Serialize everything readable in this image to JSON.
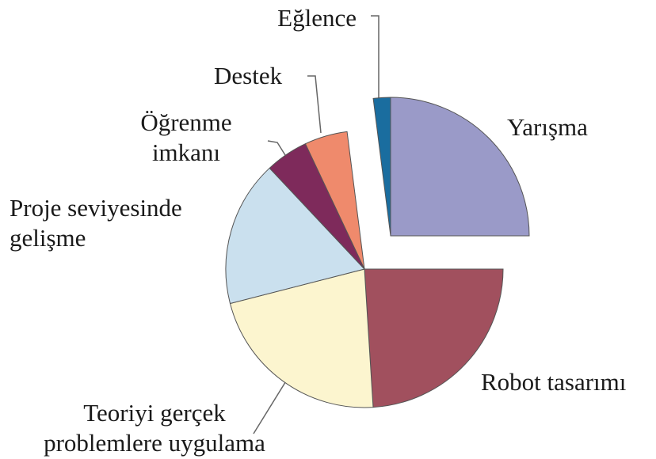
{
  "chart_data": {
    "type": "pie",
    "categories": [
      "Yarışma",
      "Robot tasarımı",
      "Teoriyi gerçek problemlere uygulama",
      "Proje seviyesinde gelişme",
      "Öğrenme imkanı",
      "Destek",
      "Eğlence"
    ],
    "values": [
      25,
      24,
      22,
      17,
      5,
      5,
      2
    ],
    "colors": [
      "#9a9ac8",
      "#a1505e",
      "#fcf5cf",
      "#cae0ee",
      "#7e2a5b",
      "#ef8a6c",
      "#1a6d9f"
    ],
    "explode": [
      true,
      false,
      false,
      false,
      false,
      false,
      true
    ]
  }
}
